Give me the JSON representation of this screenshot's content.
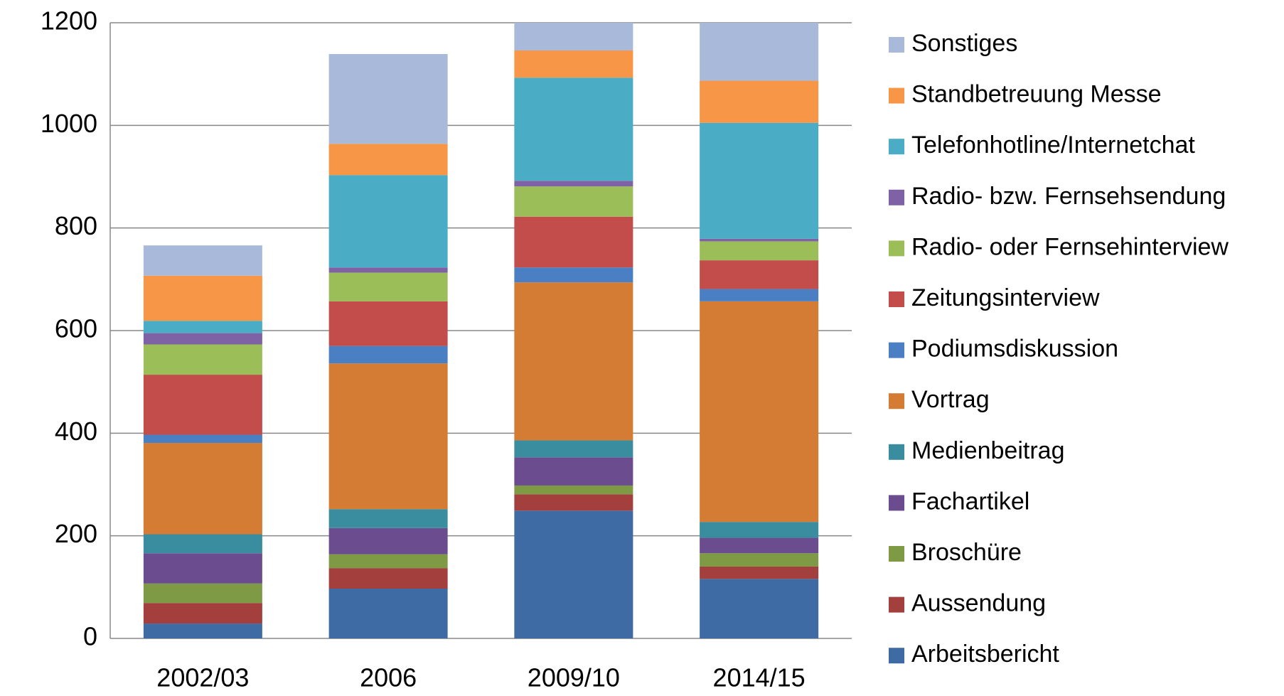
{
  "chart_data": {
    "type": "stacked_bar",
    "categories": [
      "2002/03",
      "2006",
      "2009/10",
      "2014/15"
    ],
    "ylim": [
      0,
      1200
    ],
    "yticks": [
      0,
      200,
      400,
      600,
      800,
      1000,
      1200
    ],
    "grid": true,
    "legend": "right",
    "series": [
      {
        "name": "Arbeitsbericht",
        "color": "#3f6ba5",
        "values": [
          29,
          97,
          249,
          116
        ]
      },
      {
        "name": "Aussendung",
        "color": "#a33f3d",
        "values": [
          40,
          40,
          32,
          24
        ]
      },
      {
        "name": "Broschüre",
        "color": "#7e9a45",
        "values": [
          38,
          27,
          17,
          26
        ]
      },
      {
        "name": "Fachartikel",
        "color": "#6b4c8e",
        "values": [
          59,
          51,
          55,
          30
        ]
      },
      {
        "name": "Medienbeitrag",
        "color": "#3a8d9e",
        "values": [
          37,
          37,
          33,
          31
        ]
      },
      {
        "name": "Vortrag",
        "color": "#d47b34",
        "values": [
          178,
          284,
          308,
          430
        ]
      },
      {
        "name": "Podiumsdiskussion",
        "color": "#4a7fc4",
        "values": [
          16,
          34,
          29,
          24
        ]
      },
      {
        "name": "Zeitungsinterview",
        "color": "#c24d4a",
        "values": [
          117,
          87,
          99,
          56
        ]
      },
      {
        "name": "Radio- oder Fernsehinterview",
        "color": "#9bbe59",
        "values": [
          59,
          56,
          59,
          37
        ]
      },
      {
        "name": "Radio- bzw. Fernsehsendung",
        "color": "#7f62a6",
        "values": [
          22,
          10,
          11,
          5
        ]
      },
      {
        "name": "Telefonhotline/Internetchat",
        "color": "#4bacc6",
        "values": [
          24,
          180,
          201,
          226
        ]
      },
      {
        "name": "Standbetreuung Messe",
        "color": "#f79646",
        "values": [
          88,
          61,
          53,
          82
        ]
      },
      {
        "name": "Sonstiges",
        "color": "#a9b9d9",
        "values": [
          59,
          175,
          54,
          113
        ]
      }
    ]
  }
}
